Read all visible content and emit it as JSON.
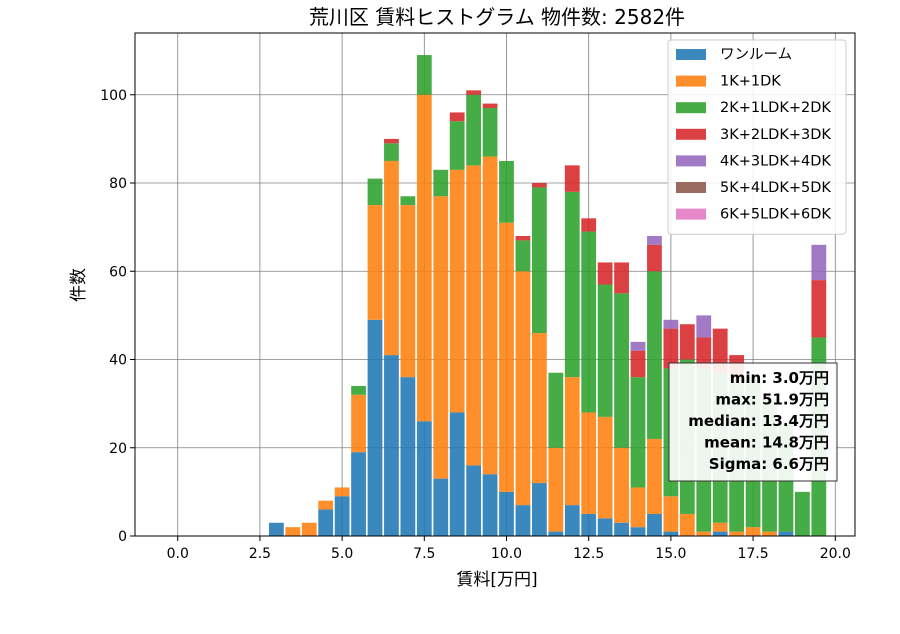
{
  "chart_data": {
    "type": "bar",
    "stacked": true,
    "title": "荒川区 賃料ヒストグラム  物件数: 2582件",
    "xlabel": "賃料[万円]",
    "ylabel": "件数",
    "xlim": [
      -1.3,
      20.6
    ],
    "ylim": [
      0,
      114
    ],
    "grid": true,
    "legend_position": "top-right",
    "bin_width": 0.5,
    "xtick_values": [
      0,
      2.5,
      5,
      7.5,
      10,
      12.5,
      15,
      17.5,
      20
    ],
    "xtick_labels": [
      "0.0",
      "2.5",
      "5.0",
      "7.5",
      "10.0",
      "12.5",
      "15.0",
      "17.5",
      "20.0"
    ],
    "ytick_values": [
      0,
      20,
      40,
      60,
      80,
      100
    ],
    "ytick_labels": [
      "0",
      "20",
      "40",
      "60",
      "80",
      "100"
    ],
    "x": [
      3.0,
      3.5,
      4.0,
      4.5,
      5.0,
      5.5,
      6.0,
      6.5,
      7.0,
      7.5,
      8.0,
      8.5,
      9.0,
      9.5,
      10.0,
      10.5,
      11.0,
      11.5,
      12.0,
      12.5,
      13.0,
      13.5,
      14.0,
      14.5,
      15.0,
      15.5,
      16.0,
      16.5,
      17.0,
      17.5,
      18.0,
      18.5,
      19.0,
      19.5
    ],
    "series": [
      {
        "name": "ワンルーム",
        "color": "#1f77b4",
        "values": [
          3,
          0,
          0,
          6,
          9,
          19,
          49,
          41,
          36,
          26,
          13,
          28,
          16,
          14,
          10,
          7,
          12,
          1,
          7,
          5,
          4,
          3,
          2,
          5,
          1,
          0,
          0,
          1,
          0,
          0,
          0,
          1,
          0,
          0
        ]
      },
      {
        "name": "1K+1DK",
        "color": "#ff7f0e",
        "values": [
          0,
          2,
          3,
          2,
          2,
          13,
          26,
          44,
          39,
          74,
          64,
          55,
          68,
          72,
          61,
          53,
          34,
          19,
          29,
          23,
          23,
          17,
          9,
          17,
          8,
          5,
          1,
          2,
          1,
          2,
          1,
          0,
          0,
          0
        ]
      },
      {
        "name": "2K+1LDK+2DK",
        "color": "#2ca02c",
        "values": [
          0,
          0,
          0,
          0,
          0,
          2,
          6,
          4,
          2,
          9,
          6,
          11,
          16,
          11,
          14,
          7,
          33,
          17,
          42,
          41,
          30,
          35,
          25,
          38,
          29,
          35,
          37,
          34,
          34,
          34,
          30,
          25,
          10,
          45
        ]
      },
      {
        "name": "3K+2LDK+3DK",
        "color": "#d62728",
        "values": [
          0,
          0,
          0,
          0,
          0,
          0,
          0,
          1,
          0,
          0,
          0,
          2,
          1,
          1,
          0,
          1,
          1,
          0,
          6,
          3,
          5,
          7,
          6,
          6,
          9,
          8,
          7,
          10,
          6,
          0,
          0,
          0,
          0,
          13
        ]
      },
      {
        "name": "4K+3LDK+4DK",
        "color": "#9467bd",
        "values": [
          0,
          0,
          0,
          0,
          0,
          0,
          0,
          0,
          0,
          0,
          0,
          0,
          0,
          0,
          0,
          0,
          0,
          0,
          0,
          0,
          0,
          0,
          2,
          2,
          2,
          0,
          5,
          0,
          0,
          0,
          0,
          0,
          0,
          8
        ]
      },
      {
        "name": "5K+4LDK+5DK",
        "color": "#8c564b",
        "values": [
          0,
          0,
          0,
          0,
          0,
          0,
          0,
          0,
          0,
          0,
          0,
          0,
          0,
          0,
          0,
          0,
          0,
          0,
          0,
          0,
          0,
          0,
          0,
          0,
          0,
          0,
          0,
          0,
          0,
          0,
          0,
          0,
          0,
          0
        ]
      },
      {
        "name": "6K+5LDK+6DK",
        "color": "#e377c2",
        "values": [
          0,
          0,
          0,
          0,
          0,
          0,
          0,
          0,
          0,
          0,
          0,
          0,
          0,
          0,
          0,
          0,
          0,
          0,
          0,
          0,
          0,
          0,
          0,
          0,
          0,
          0,
          0,
          0,
          0,
          0,
          0,
          0,
          0,
          0
        ]
      }
    ],
    "annotations": [
      "min: 3.0万円",
      "max: 51.9万円",
      "median: 13.4万円",
      "mean: 14.8万円",
      "Sigma: 6.6万円"
    ]
  }
}
